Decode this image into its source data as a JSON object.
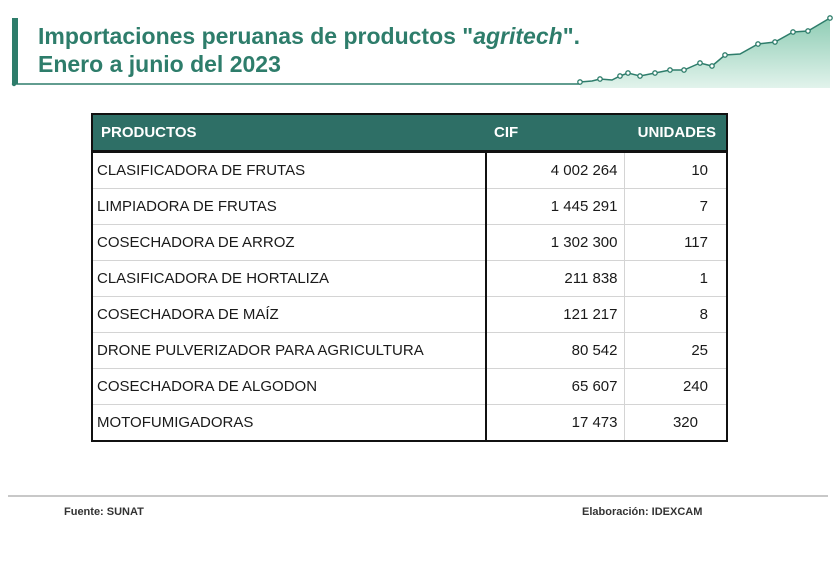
{
  "header": {
    "title_line1_before": "Importaciones peruanas de productos \"",
    "title_line1_italic": "agritech",
    "title_line1_after": "\".",
    "title_line2": "Enero a junio del 2023"
  },
  "chart_data": {
    "type": "table",
    "columns": [
      "PRODUCTOS",
      "CIF",
      "UNIDADES"
    ],
    "rows": [
      {
        "producto": "CLASIFICADORA DE FRUTAS",
        "cif": "4 002 264",
        "unidades": "10"
      },
      {
        "producto": "LIMPIADORA DE FRUTAS",
        "cif": "1 445 291",
        "unidades": "7"
      },
      {
        "producto": "COSECHADORA DE ARROZ",
        "cif": "1 302 300",
        "unidades": "117"
      },
      {
        "producto": "CLASIFICADORA DE HORTALIZA",
        "cif": "211 838",
        "unidades": "1"
      },
      {
        "producto": "COSECHADORA DE MAÍZ",
        "cif": "121 217",
        "unidades": "8"
      },
      {
        "producto": "DRONE PULVERIZADOR PARA AGRICULTURA",
        "cif": "80 542",
        "unidades": "25"
      },
      {
        "producto": "COSECHADORA DE ALGODON",
        "cif": "65 607",
        "unidades": "240"
      },
      {
        "producto": "MOTOFUMIGADORAS",
        "cif": "17 473",
        "unidades": "320"
      }
    ]
  },
  "footer": {
    "source": "Fuente:  SUNAT",
    "credit": "Elaboración: IDEXCAM"
  },
  "colors": {
    "accent": "#2e7d6b",
    "table_header": "#2e6f66",
    "decoration_fill": "#a8d8c4"
  }
}
